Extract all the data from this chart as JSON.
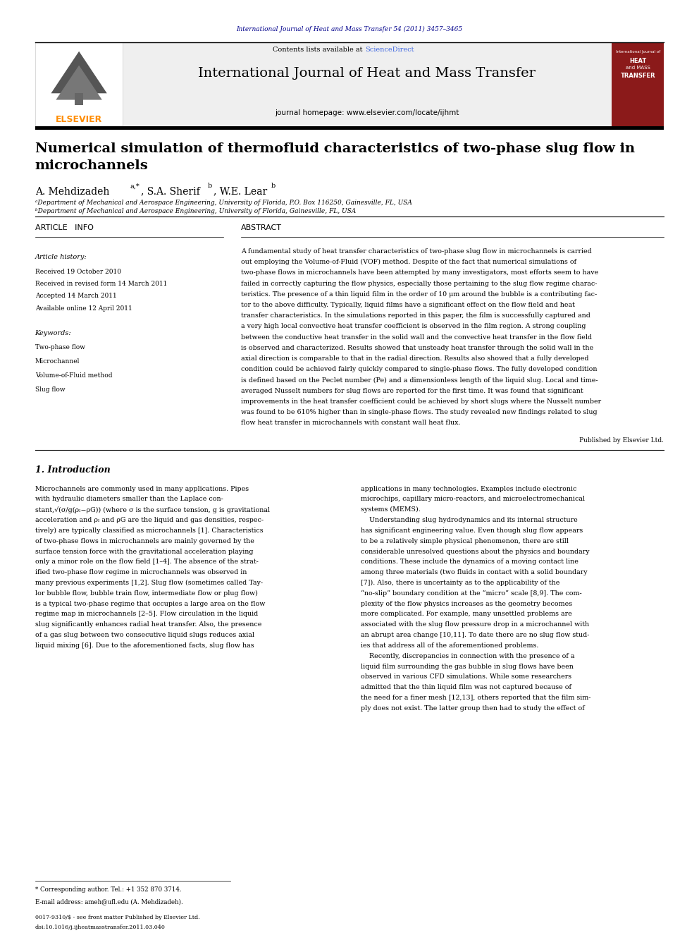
{
  "page_width": 9.92,
  "page_height": 13.23,
  "bg_color": "#ffffff",
  "header_journal_ref": "International Journal of Heat and Mass Transfer 54 (2011) 3457–3465",
  "header_ref_color": "#00008B",
  "journal_name": "International Journal of Heat and Mass Transfer",
  "journal_homepage": "journal homepage: www.elsevier.com/locate/ijhmt",
  "sciencedirect_color": "#4169E1",
  "elsevier_color": "#FF8C00",
  "paper_title": "Numerical simulation of thermofluid characteristics of two-phase slug flow in\nmicrochannels",
  "affil_a": "ᵃDepartment of Mechanical and Aerospace Engineering, University of Florida, P.O. Box 116250, Gainesville, FL, USA",
  "affil_b": "ᵇDepartment of Mechanical and Aerospace Engineering, University of Florida, Gainesville, FL, USA",
  "article_info_title": "ARTICLE   INFO",
  "abstract_title": "ABSTRACT",
  "article_history_title": "Article history:",
  "received1": "Received 19 October 2010",
  "received2": "Received in revised form 14 March 2011",
  "accepted": "Accepted 14 March 2011",
  "available": "Available online 12 April 2011",
  "keywords_title": "Keywords:",
  "keywords": [
    "Two-phase flow",
    "Microchannel",
    "Volume-of-Fluid method",
    "Slug flow"
  ],
  "abstract_lines": [
    "A fundamental study of heat transfer characteristics of two-phase slug flow in microchannels is carried",
    "out employing the Volume-of-Fluid (VOF) method. Despite of the fact that numerical simulations of",
    "two-phase flows in microchannels have been attempted by many investigators, most efforts seem to have",
    "failed in correctly capturing the flow physics, especially those pertaining to the slug flow regime charac-",
    "teristics. The presence of a thin liquid film in the order of 10 μm around the bubble is a contributing fac-",
    "tor to the above difficulty. Typically, liquid films have a significant effect on the flow field and heat",
    "transfer characteristics. In the simulations reported in this paper, the film is successfully captured and",
    "a very high local convective heat transfer coefficient is observed in the film region. A strong coupling",
    "between the conductive heat transfer in the solid wall and the convective heat transfer in the flow field",
    "is observed and characterized. Results showed that unsteady heat transfer through the solid wall in the",
    "axial direction is comparable to that in the radial direction. Results also showed that a fully developed",
    "condition could be achieved fairly quickly compared to single-phase flows. The fully developed condition",
    "is defined based on the Peclet number (Pe) and a dimensionless length of the liquid slug. Local and time-",
    "averaged Nusselt numbers for slug flows are reported for the first time. It was found that significant",
    "improvements in the heat transfer coefficient could be achieved by short slugs where the Nusselt number",
    "was found to be 610% higher than in single-phase flows. The study revealed new findings related to slug",
    "flow heat transfer in microchannels with constant wall heat flux."
  ],
  "published_by": "Published by Elsevier Ltd.",
  "section1_title": "1. Introduction",
  "col1_lines": [
    "Microchannels are commonly used in many applications. Pipes",
    "with hydraulic diameters smaller than the Laplace con-",
    "stant,√(σ/g(ρₗ−ρG)) (where σ is the surface tension, g is gravitational",
    "acceleration and ρₗ and ρG are the liquid and gas densities, respec-",
    "tively) are typically classified as microchannels [1]. Characteristics",
    "of two-phase flows in microchannels are mainly governed by the",
    "surface tension force with the gravitational acceleration playing",
    "only a minor role on the flow field [1–4]. The absence of the strat-",
    "ified two-phase flow regime in microchannels was observed in",
    "many previous experiments [1,2]. Slug flow (sometimes called Tay-",
    "lor bubble flow, bubble train flow, intermediate flow or plug flow)",
    "is a typical two-phase regime that occupies a large area on the flow",
    "regime map in microchannels [2–5]. Flow circulation in the liquid",
    "slug significantly enhances radial heat transfer. Also, the presence",
    "of a gas slug between two consecutive liquid slugs reduces axial",
    "liquid mixing [6]. Due to the aforementioned facts, slug flow has"
  ],
  "col2_lines": [
    "applications in many technologies. Examples include electronic",
    "microchips, capillary micro-reactors, and microelectromechanical",
    "systems (MEMS).",
    "    Understanding slug hydrodynamics and its internal structure",
    "has significant engineering value. Even though slug flow appears",
    "to be a relatively simple physical phenomenon, there are still",
    "considerable unresolved questions about the physics and boundary",
    "conditions. These include the dynamics of a moving contact line",
    "among three materials (two fluids in contact with a solid boundary",
    "[7]). Also, there is uncertainty as to the applicability of the",
    "“no-slip” boundary condition at the “micro” scale [8,9]. The com-",
    "plexity of the flow physics increases as the geometry becomes",
    "more complicated. For example, many unsettled problems are",
    "associated with the slug flow pressure drop in a microchannel with",
    "an abrupt area change [10,11]. To date there are no slug flow stud-",
    "ies that address all of the aforementioned problems.",
    "    Recently, discrepancies in connection with the presence of a",
    "liquid film surrounding the gas bubble in slug flows have been",
    "observed in various CFD simulations. While some researchers",
    "admitted that the thin liquid film was not captured because of",
    "the need for a finer mesh [12,13], others reported that the film sim-",
    "ply does not exist. The latter group then had to study the effect of"
  ],
  "footnote_star": "* Corresponding author. Tel.: +1 352 870 3714.",
  "footnote_email": "E-mail address: ameh@ufl.edu (A. Mehdizadeh).",
  "footer_issn": "0017-9310/$ - see front matter Published by Elsevier Ltd.",
  "footer_doi": "doi:10.1016/j.ijheatmasstransfer.2011.03.040"
}
